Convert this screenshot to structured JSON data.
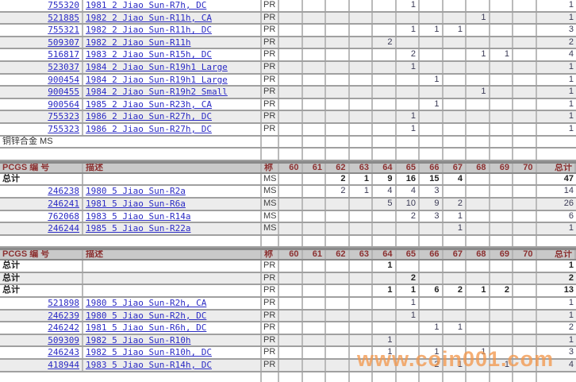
{
  "watermark": {
    "text": "www.coin001.com"
  },
  "band_label": "铜锌合金  MS",
  "totals_label": "总计",
  "table": {
    "columns": {
      "id": "PCGS 编 号",
      "desc": "描述",
      "grade": "称",
      "grades": [
        "60",
        "61",
        "62",
        "63",
        "64",
        "65",
        "66",
        "67",
        "68",
        "69",
        "70"
      ],
      "total": "总计"
    },
    "sections": [
      {
        "kind": "data",
        "rows": [
          {
            "id": "755320",
            "desc": "1981 2 Jiao Sun-R7h, DC",
            "grade": "PR",
            "vals": {
              "65": "1"
            },
            "total": "1",
            "shaded": false
          },
          {
            "id": "521885",
            "desc": "1982 2 Jiao Sun-R11h, CA",
            "grade": "PR",
            "vals": {
              "68": "1"
            },
            "total": "1",
            "shaded": true
          },
          {
            "id": "755321",
            "desc": "1982 2 Jiao Sun-R11h, DC",
            "grade": "PR",
            "vals": {
              "65": "1",
              "66": "1",
              "67": "1"
            },
            "total": "3",
            "shaded": false
          },
          {
            "id": "509307",
            "desc": "1982 2 Jiao Sun-R11h",
            "grade": "PR",
            "vals": {
              "64": "2"
            },
            "total": "2",
            "shaded": true
          },
          {
            "id": "516817",
            "desc": "1983 2 Jiao Sun-R15h, DC",
            "grade": "PR",
            "vals": {
              "65": "2",
              "68": "1",
              "69": "1"
            },
            "total": "4",
            "shaded": false
          },
          {
            "id": "523037",
            "desc": "1984 2 Jiao Sun-R19h1 Large",
            "grade": "PR",
            "vals": {
              "65": "1"
            },
            "total": "1",
            "shaded": true
          },
          {
            "id": "900454",
            "desc": "1984 2 Jiao Sun-R19h1 Large",
            "grade": "PR",
            "vals": {
              "66": "1"
            },
            "total": "1",
            "shaded": false
          },
          {
            "id": "900455",
            "desc": "1984 2 Jiao Sun-R19h2 Small",
            "grade": "PR",
            "vals": {
              "68": "1"
            },
            "total": "1",
            "shaded": true
          },
          {
            "id": "900564",
            "desc": "1985 2 Jiao Sun-R23h, CA",
            "grade": "PR",
            "vals": {
              "66": "1"
            },
            "total": "1",
            "shaded": false
          },
          {
            "id": "755323",
            "desc": "1986 2 Jiao Sun-R27h, DC",
            "grade": "PR",
            "vals": {
              "65": "1"
            },
            "total": "1",
            "shaded": true
          },
          {
            "id": "755323",
            "desc": "1986 2 Jiao Sun-R27h, DC",
            "grade": "PR",
            "vals": {
              "65": "1"
            },
            "total": "1",
            "shaded": false
          }
        ]
      },
      {
        "kind": "band"
      },
      {
        "kind": "blank"
      },
      {
        "kind": "header"
      },
      {
        "kind": "data",
        "rows": [
          {
            "label": "总计",
            "desc": "",
            "grade": "MS",
            "vals": {
              "62": "2",
              "63": "1",
              "64": "9",
              "65": "16",
              "66": "15",
              "67": "4"
            },
            "total": "47",
            "shaded": false
          },
          {
            "id": "246238",
            "desc": "1980 5 Jiao Sun-R2a",
            "grade": "MS",
            "vals": {
              "62": "2",
              "63": "1",
              "64": "4",
              "65": "4",
              "66": "3"
            },
            "total": "14",
            "shaded": false
          },
          {
            "id": "246241",
            "desc": "1981 5 Jiao Sun-R6a",
            "grade": "MS",
            "vals": {
              "64": "5",
              "65": "10",
              "66": "9",
              "67": "2"
            },
            "total": "26",
            "shaded": true
          },
          {
            "id": "762068",
            "desc": "1983 5 Jiao Sun-R14a",
            "grade": "MS",
            "vals": {
              "65": "2",
              "66": "3",
              "67": "1"
            },
            "total": "6",
            "shaded": false
          },
          {
            "id": "246244",
            "desc": "1985 5 Jiao Sun-R22a",
            "grade": "MS",
            "vals": {
              "67": "1"
            },
            "total": "1",
            "shaded": true
          }
        ]
      },
      {
        "kind": "blank"
      },
      {
        "kind": "header"
      },
      {
        "kind": "data",
        "rows": [
          {
            "label": "总计",
            "desc": "",
            "grade": "PR",
            "vals": {
              "64": "1"
            },
            "total": "1",
            "shaded": false
          },
          {
            "label": "总计",
            "desc": "",
            "grade": "PR",
            "vals": {
              "65": "2"
            },
            "total": "2",
            "shaded": true
          },
          {
            "label": "总计",
            "desc": "",
            "grade": "PR",
            "vals": {
              "64": "1",
              "65": "1",
              "66": "6",
              "67": "2",
              "68": "1",
              "69": "2"
            },
            "total": "13",
            "shaded": false
          },
          {
            "id": "521898",
            "desc": "1980 5 Jiao Sun-R2h, CA",
            "grade": "PR",
            "vals": {
              "65": "1"
            },
            "total": "1",
            "shaded": false
          },
          {
            "id": "246239",
            "desc": "1980 5 Jiao Sun-R2h, DC",
            "grade": "PR",
            "vals": {
              "65": "1"
            },
            "total": "1",
            "shaded": true
          },
          {
            "id": "246242",
            "desc": "1981 5 Jiao Sun-R6h, DC",
            "grade": "PR",
            "vals": {
              "66": "1",
              "67": "1"
            },
            "total": "2",
            "shaded": false
          },
          {
            "id": "509309",
            "desc": "1982 5 Jiao Sun-R10h",
            "grade": "PR",
            "vals": {
              "64": "1"
            },
            "total": "1",
            "shaded": true
          },
          {
            "id": "246243",
            "desc": "1982 5 Jiao Sun-R10h, DC",
            "grade": "PR",
            "vals": {
              "64": "1",
              "66": "1",
              "68": "1"
            },
            "total": "3",
            "shaded": false
          },
          {
            "id": "418944",
            "desc": "1983 5 Jiao Sun-R14h, DC",
            "grade": "PR",
            "vals": {
              "66": "2",
              "67": "1",
              "69": "1"
            },
            "total": "4",
            "shaded": true
          }
        ]
      },
      {
        "kind": "blank"
      }
    ]
  }
}
